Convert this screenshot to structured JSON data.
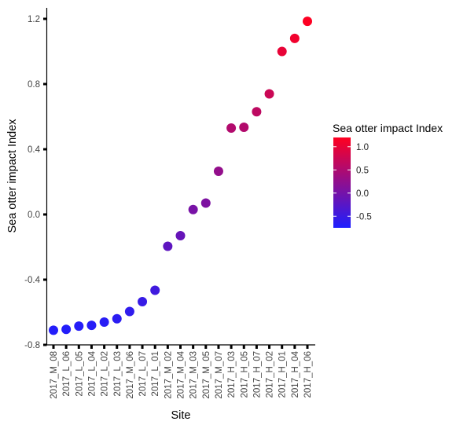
{
  "chart_data": {
    "type": "scatter",
    "xlabel": "Site",
    "ylabel": "Sea otter impact Index",
    "ylim": [
      -0.8,
      1.28
    ],
    "yticks": [
      -0.8,
      -0.4,
      0.0,
      0.4,
      0.8,
      1.2
    ],
    "ytick_labels": [
      "-0.8",
      "-0.4",
      "0.0",
      "0.4",
      "0.8",
      "1.2"
    ],
    "grid": false,
    "categories": [
      "2017_M_08",
      "2017_L_06",
      "2017_L_05",
      "2017_L_04",
      "2017_L_02",
      "2017_L_03",
      "2017_M_06",
      "2017_L_07",
      "2017_L_01",
      "2017_M_02",
      "2017_M_04",
      "2017_M_03",
      "2017_M_05",
      "2017_M_07",
      "2017_H_03",
      "2017_H_05",
      "2017_H_07",
      "2017_H_02",
      "2017_H_01",
      "2017_H_04",
      "2017_H_06"
    ],
    "values": [
      -0.71,
      -0.705,
      -0.685,
      -0.68,
      -0.66,
      -0.64,
      -0.595,
      -0.535,
      -0.465,
      -0.195,
      -0.13,
      0.03,
      0.07,
      0.265,
      0.53,
      0.535,
      0.63,
      0.74,
      1.0,
      1.08,
      1.185
    ],
    "color_scale": {
      "title": "Sea otter impact Index",
      "min": -0.75,
      "max": 1.2,
      "low_color": "#1e1eff",
      "high_color": "#ff0020",
      "ticks": [
        1.0,
        0.5,
        0.0,
        -0.5
      ],
      "tick_labels": [
        "1.0",
        "0.5",
        "0.0",
        "-0.5"
      ]
    },
    "legend_position": "right"
  }
}
